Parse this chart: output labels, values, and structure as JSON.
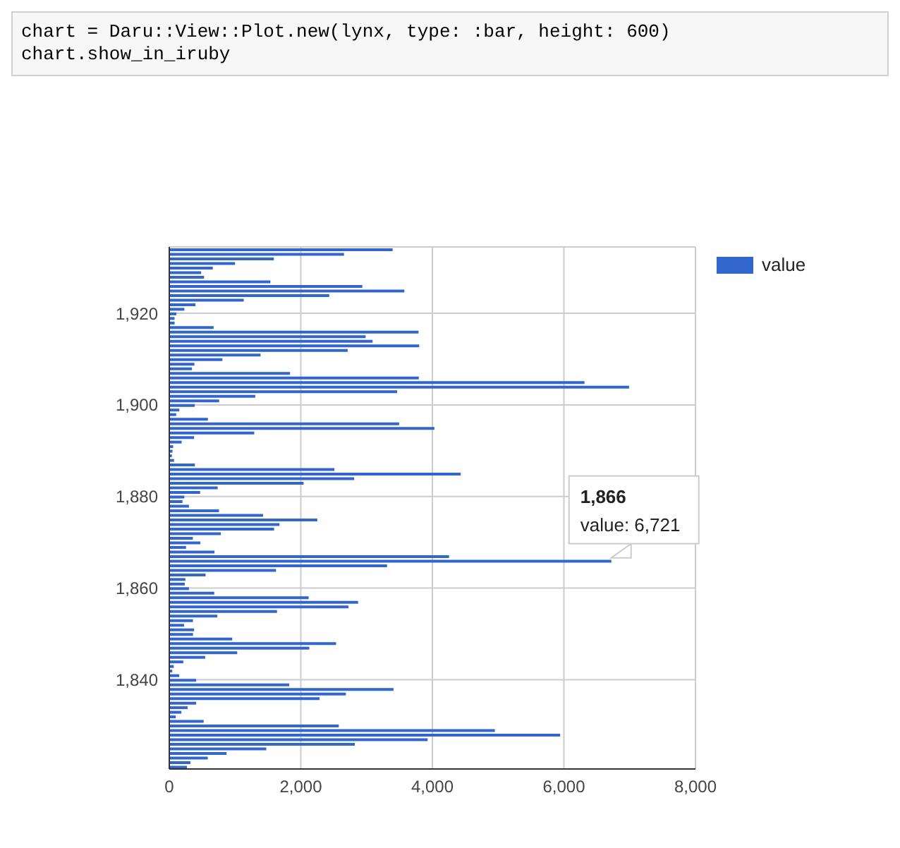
{
  "chart_data": {
    "type": "bar",
    "orientation": "horizontal",
    "annotations": [
      "chart = Daru::View::Plot.new(lynx, type: :bar, height: 600)",
      "chart.show_in_iruby",
      {
        "text": "1,866\nvalue: 6,721",
        "x": 6721,
        "y": 1866
      }
    ],
    "x": [
      1821,
      1822,
      1823,
      1824,
      1825,
      1826,
      1827,
      1828,
      1829,
      1830,
      1831,
      1832,
      1833,
      1834,
      1835,
      1836,
      1837,
      1838,
      1839,
      1840,
      1841,
      1842,
      1843,
      1844,
      1845,
      1846,
      1847,
      1848,
      1849,
      1850,
      1851,
      1852,
      1853,
      1854,
      1855,
      1856,
      1857,
      1858,
      1859,
      1860,
      1861,
      1862,
      1863,
      1864,
      1865,
      1866,
      1867,
      1868,
      1869,
      1870,
      1871,
      1872,
      1873,
      1874,
      1875,
      1876,
      1877,
      1878,
      1879,
      1880,
      1881,
      1882,
      1883,
      1884,
      1885,
      1886,
      1887,
      1888,
      1889,
      1890,
      1891,
      1892,
      1893,
      1894,
      1895,
      1896,
      1897,
      1898,
      1899,
      1900,
      1901,
      1902,
      1903,
      1904,
      1905,
      1906,
      1907,
      1908,
      1909,
      1910,
      1911,
      1912,
      1913,
      1914,
      1915,
      1916,
      1917,
      1918,
      1919,
      1920,
      1921,
      1922,
      1923,
      1924,
      1925,
      1926,
      1927,
      1928,
      1929,
      1930,
      1931,
      1932,
      1933,
      1934
    ],
    "series": [
      {
        "name": "value",
        "color": "#3366cc",
        "values": [
          269,
          321,
          585,
          871,
          1475,
          2821,
          3928,
          5943,
          4950,
          2577,
          523,
          98,
          184,
          279,
          409,
          2285,
          2685,
          3409,
          1824,
          409,
          151,
          45,
          68,
          213,
          546,
          1033,
          2129,
          2536,
          957,
          361,
          377,
          225,
          360,
          731,
          1638,
          2725,
          2871,
          2119,
          684,
          299,
          236,
          245,
          552,
          1623,
          3311,
          6721,
          4254,
          687,
          255,
          473,
          358,
          784,
          1594,
          1676,
          2251,
          1426,
          756,
          299,
          201,
          229,
          469,
          736,
          2042,
          2811,
          4431,
          2511,
          389,
          73,
          39,
          49,
          59,
          188,
          377,
          1292,
          4031,
          3495,
          587,
          105,
          153,
          387,
          758,
          1307,
          3465,
          6991,
          6313,
          3794,
          1836,
          345,
          382,
          808,
          1388,
          2713,
          3800,
          3091,
          2985,
          3790,
          674,
          81,
          80,
          108,
          229,
          399,
          1132,
          2432,
          3574,
          2935,
          1537,
          529,
          485,
          662,
          1000,
          1590,
          2657,
          3396
        ]
      }
    ],
    "xlim": [
      0,
      8000
    ],
    "xticks": [
      0,
      {
        "value": 2000,
        "label": "2,000"
      },
      {
        "value": 4000,
        "label": "4,000"
      },
      {
        "value": 6000,
        "label": "6,000"
      },
      {
        "value": 8000,
        "label": "8,000"
      }
    ],
    "ylim": [
      1820.5,
      1934.5
    ],
    "yticks": [
      {
        "value": 1840,
        "label": "1,840"
      },
      {
        "value": 1860,
        "label": "1,860"
      },
      {
        "value": 1880,
        "label": "1,880"
      },
      {
        "value": 1900,
        "label": "1,900"
      },
      {
        "value": 1920,
        "label": "1,920"
      }
    ],
    "grid": true,
    "legend": "top right"
  }
}
